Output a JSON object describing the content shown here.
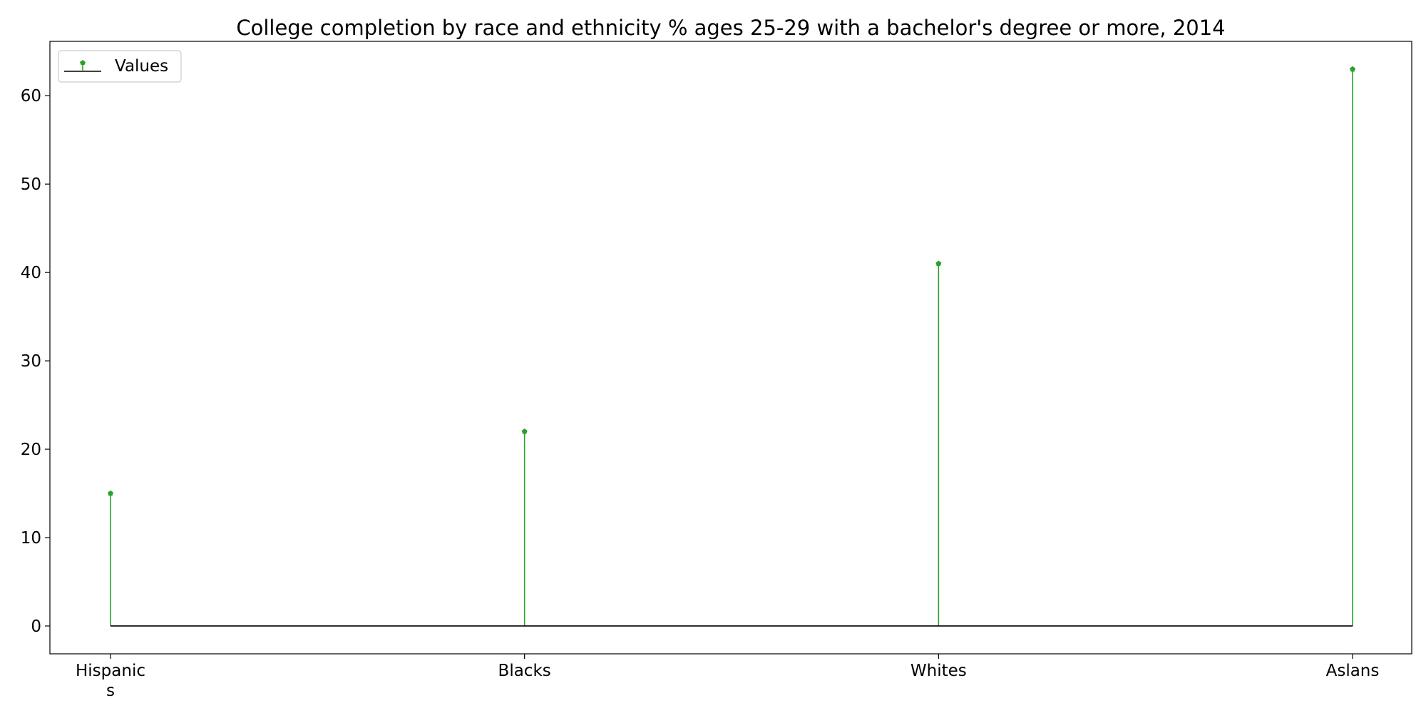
{
  "chart_data": {
    "type": "stem",
    "title": "College completion by race and ethnicity % ages 25-29 with a bachelor's degree or more, 2014",
    "xlabel": "",
    "ylabel": "",
    "categories": [
      [
        "Hispanic",
        "s"
      ],
      [
        "Blacks"
      ],
      [
        "Whites"
      ],
      [
        "Aslans"
      ]
    ],
    "series": [
      {
        "name": "Values",
        "values": [
          15,
          22,
          41,
          63
        ]
      }
    ],
    "ylim": [
      -3.15,
      66.15
    ],
    "yticks": [
      0,
      10,
      20,
      30,
      40,
      50,
      60
    ],
    "grid": false,
    "legend": "top-left",
    "colors": {
      "stem": "#2ca02c",
      "baseline": "#000000",
      "axis": "#000000"
    }
  }
}
